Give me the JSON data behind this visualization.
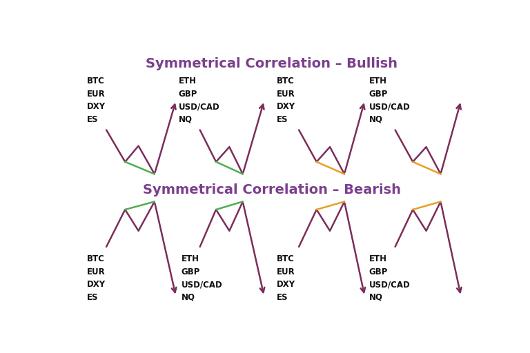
{
  "title_bullish": "Symmetrical Correlation – Bullish",
  "title_bearish": "Symmetrical Correlation – Bearish",
  "title_color": "#7B3F8C",
  "title_fontsize": 14,
  "bg_color": "#FFFFFF",
  "line_color": "#7B2D5A",
  "line_width": 1.8,
  "green_color": "#4CAF50",
  "orange_color": "#E8A020",
  "label_left": "BTC\nEUR\nDXY\nES",
  "label_right": "ETH\nGBP\nUSD/CAD\nNQ",
  "label_fontsize": 8.5,
  "bullish_colors": [
    "#4CAF50",
    "#4CAF50",
    "#E8A020",
    "#E8A020"
  ],
  "bearish_colors": [
    "#4CAF50",
    "#4CAF50",
    "#E8A020",
    "#E8A020"
  ],
  "bullish_labels": [
    "BTC\nEUR\nDXY\nES",
    "ETH\nGBP\nUSD/CAD\nNQ",
    "BTC\nEUR\nDXY\nES",
    "ETH\nGBP\nUSD/CAD\nNQ"
  ],
  "bearish_labels": [
    "BTC\nEUR\nDXY\nES",
    "ETH\nGBP\nUSD/CAD\nNQ",
    "BTC\nEUR\nDXY\nES",
    "ETH\nGBP\nUSD/CAD\nNQ"
  ]
}
